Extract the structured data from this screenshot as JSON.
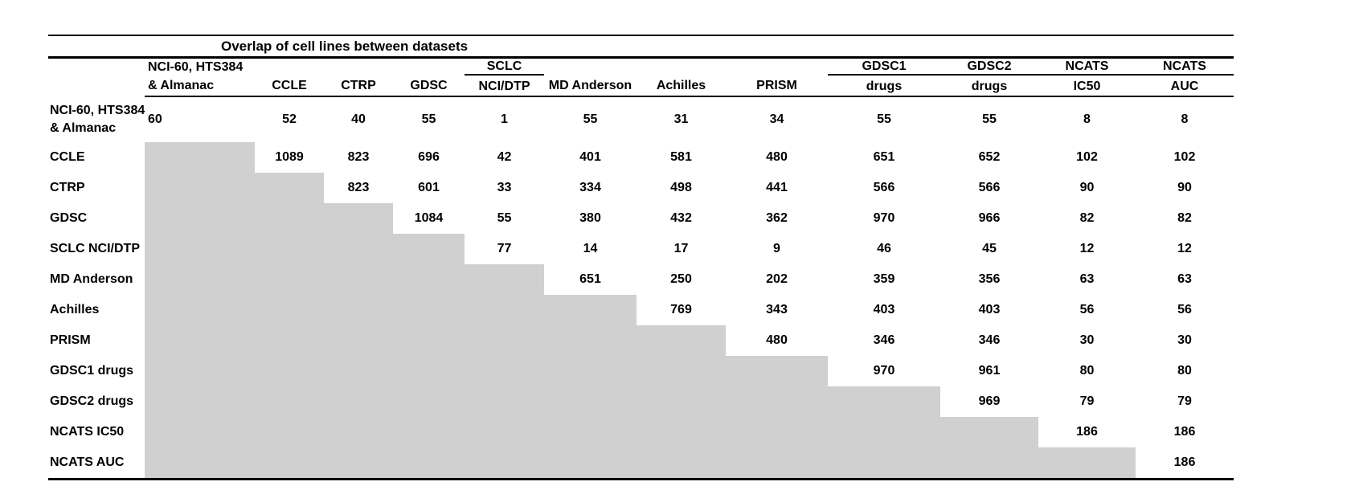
{
  "title": "Overlap of cell lines between datasets",
  "colors": {
    "shade_fill": "#d0d0d0",
    "line_color": "#000000",
    "text_color": "#000000",
    "background": "#ffffff"
  },
  "chart_data": {
    "type": "table",
    "title": "Overlap of cell lines between datasets",
    "layout_hint": "upper-triangular overlap matrix; lower-left triangle cells are shaded gray with no values",
    "columns": [
      {
        "line1": "NCI-60, HTS384",
        "line2": "& Almanac",
        "underline": false,
        "align": "left"
      },
      {
        "line1": "",
        "line2": "CCLE",
        "underline": false,
        "align": "center"
      },
      {
        "line1": "",
        "line2": "CTRP",
        "underline": false,
        "align": "center"
      },
      {
        "line1": "",
        "line2": "GDSC",
        "underline": false,
        "align": "center"
      },
      {
        "line1": "SCLC",
        "line2": "NCI/DTP",
        "underline": true,
        "align": "center"
      },
      {
        "line1": "",
        "line2": "MD Anderson",
        "underline": false,
        "align": "center"
      },
      {
        "line1": "",
        "line2": "Achilles",
        "underline": false,
        "align": "center"
      },
      {
        "line1": "",
        "line2": "PRISM",
        "underline": false,
        "align": "center"
      },
      {
        "line1": "GDSC1",
        "line2": "drugs",
        "underline": true,
        "align": "center"
      },
      {
        "line1": "GDSC2",
        "line2": "drugs",
        "underline": true,
        "align": "center"
      },
      {
        "line1": "NCATS",
        "line2": "IC50",
        "underline": true,
        "align": "center"
      },
      {
        "line1": "NCATS",
        "line2": "AUC",
        "underline": true,
        "align": "center"
      }
    ],
    "rows": [
      {
        "label_lines": [
          "NCI-60, HTS384",
          "& Almanac"
        ],
        "values": [
          60,
          52,
          40,
          55,
          1,
          55,
          31,
          34,
          55,
          55,
          8,
          8
        ]
      },
      {
        "label_lines": [
          "CCLE"
        ],
        "values": [
          null,
          1089,
          823,
          696,
          42,
          401,
          581,
          480,
          651,
          652,
          102,
          102
        ]
      },
      {
        "label_lines": [
          "CTRP"
        ],
        "values": [
          null,
          null,
          823,
          601,
          33,
          334,
          498,
          441,
          566,
          566,
          90,
          90
        ]
      },
      {
        "label_lines": [
          "GDSC"
        ],
        "values": [
          null,
          null,
          null,
          1084,
          55,
          380,
          432,
          362,
          970,
          966,
          82,
          82
        ]
      },
      {
        "label_lines": [
          "SCLC NCI/DTP"
        ],
        "values": [
          null,
          null,
          null,
          null,
          77,
          14,
          17,
          9,
          46,
          45,
          12,
          12
        ]
      },
      {
        "label_lines": [
          "MD Anderson"
        ],
        "values": [
          null,
          null,
          null,
          null,
          null,
          651,
          250,
          202,
          359,
          356,
          63,
          63
        ]
      },
      {
        "label_lines": [
          "Achilles"
        ],
        "values": [
          null,
          null,
          null,
          null,
          null,
          null,
          769,
          343,
          403,
          403,
          56,
          56
        ]
      },
      {
        "label_lines": [
          "PRISM"
        ],
        "values": [
          null,
          null,
          null,
          null,
          null,
          null,
          null,
          480,
          346,
          346,
          30,
          30
        ]
      },
      {
        "label_lines": [
          "GDSC1 drugs"
        ],
        "values": [
          null,
          null,
          null,
          null,
          null,
          null,
          null,
          null,
          970,
          961,
          80,
          80
        ]
      },
      {
        "label_lines": [
          "GDSC2 drugs"
        ],
        "values": [
          null,
          null,
          null,
          null,
          null,
          null,
          null,
          null,
          null,
          969,
          79,
          79
        ]
      },
      {
        "label_lines": [
          "NCATS IC50"
        ],
        "values": [
          null,
          null,
          null,
          null,
          null,
          null,
          null,
          null,
          null,
          null,
          186,
          186
        ]
      },
      {
        "label_lines": [
          "NCATS AUC"
        ],
        "values": [
          null,
          null,
          null,
          null,
          null,
          null,
          null,
          null,
          null,
          null,
          null,
          186
        ]
      }
    ]
  }
}
